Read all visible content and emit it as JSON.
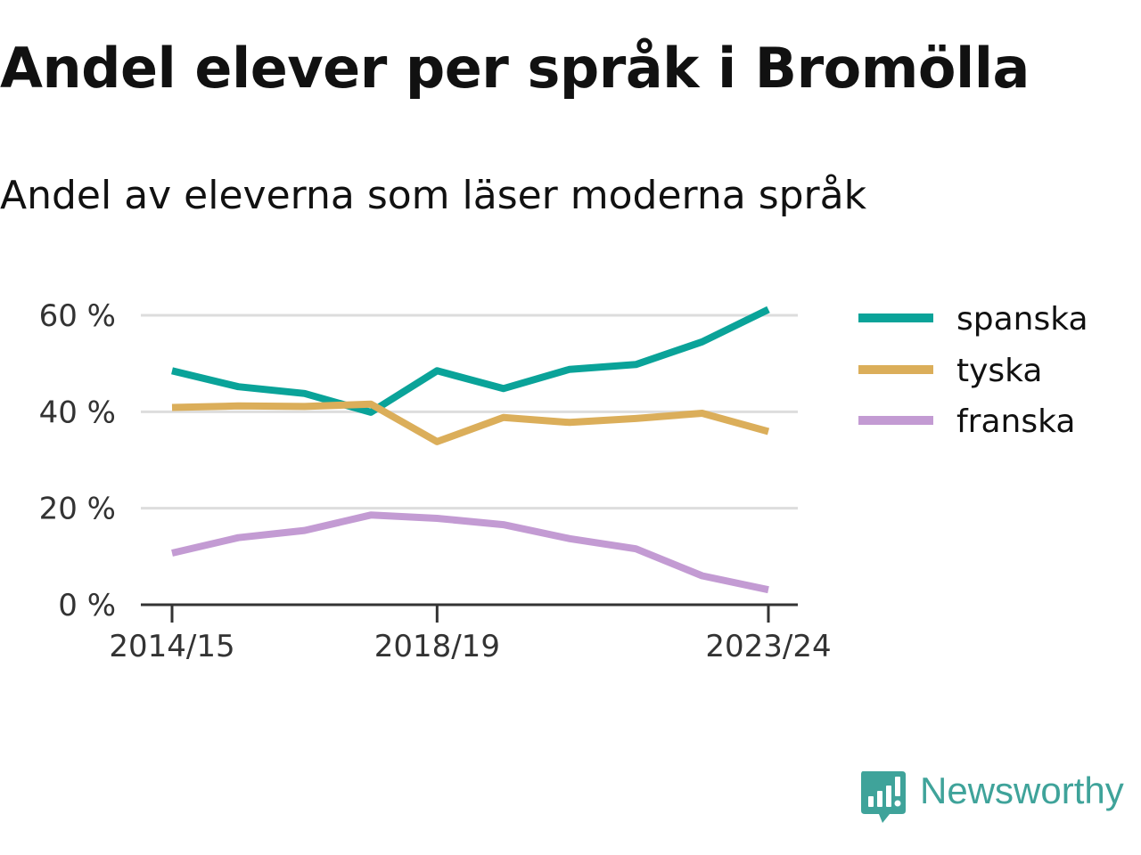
{
  "header": {
    "title": "Andel elever per språk i Bromölla",
    "subtitle": "Andel av eleverna som läser moderna språk"
  },
  "brand": {
    "name": "Newsworthy",
    "icon": "bar-chart-speech-bubble-icon",
    "color": "#3fa39a"
  },
  "chart_data": {
    "type": "line",
    "title": "Andel elever per språk i Bromölla",
    "subtitle": "Andel av eleverna som läser moderna språk",
    "xlabel": "",
    "ylabel": "",
    "x": [
      "2014/15",
      "2015/16",
      "2016/17",
      "2017/18",
      "2018/19",
      "2019/20",
      "2020/21",
      "2021/22",
      "2022/23",
      "2023/24"
    ],
    "x_tick_labels": [
      "2014/15",
      "2018/19",
      "2023/24"
    ],
    "y_ticks": [
      0,
      20,
      40,
      60
    ],
    "y_tick_labels": [
      "0 %",
      "20 %",
      "40 %",
      "60 %"
    ],
    "ylim": [
      0,
      62
    ],
    "grid": true,
    "legend_position": "right",
    "series": [
      {
        "name": "spanska",
        "color": "#0aa399",
        "values": [
          48.5,
          45.2,
          43.8,
          39.9,
          48.5,
          44.8,
          48.8,
          49.8,
          54.5,
          61.2
        ]
      },
      {
        "name": "tyska",
        "color": "#dbae5a",
        "values": [
          40.9,
          41.2,
          41.1,
          41.6,
          33.8,
          38.8,
          37.8,
          38.6,
          39.7,
          35.9
        ]
      },
      {
        "name": "franska",
        "color": "#c39bd3",
        "values": [
          10.7,
          13.9,
          15.4,
          18.6,
          17.9,
          16.6,
          13.7,
          11.6,
          6.0,
          3.1
        ]
      }
    ]
  }
}
